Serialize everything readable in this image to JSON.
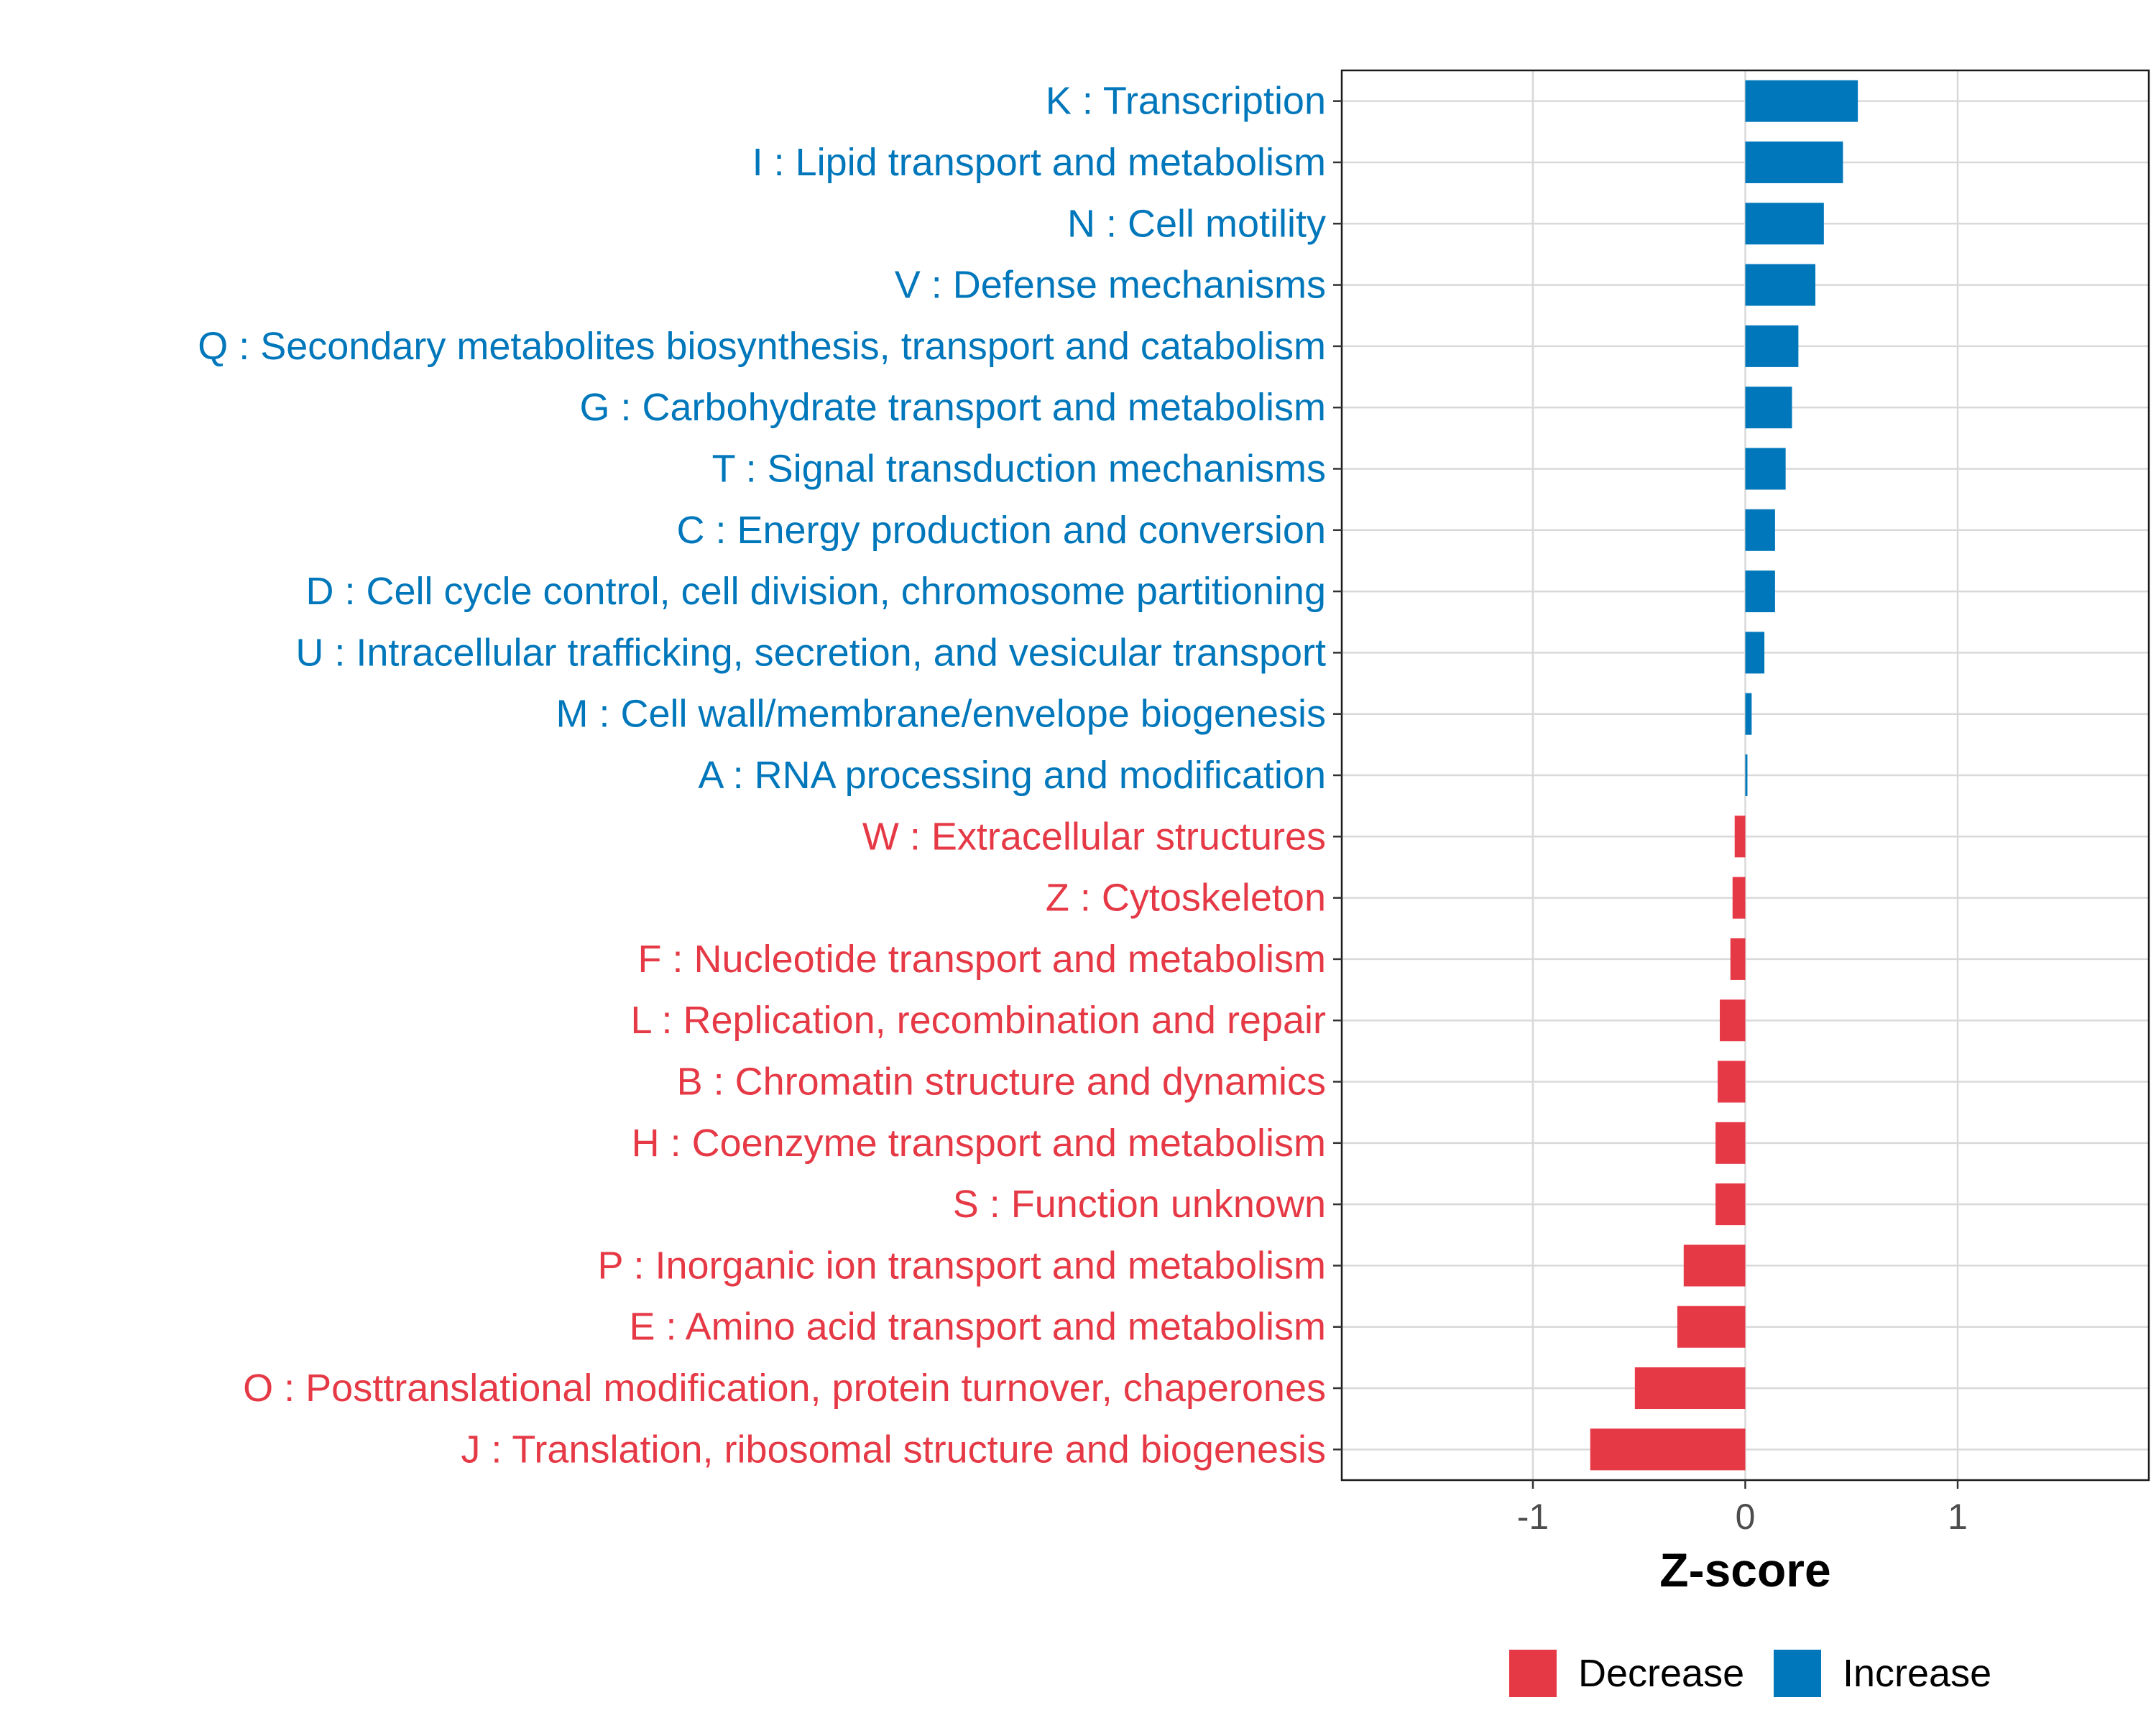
{
  "chart_data": {
    "type": "bar",
    "orientation": "horizontal",
    "title": "",
    "xlabel": "Z-score",
    "ylabel": "",
    "xlim": [
      -1.9,
      1.9
    ],
    "x_ticks": [
      -1,
      0,
      1
    ],
    "x_tick_labels": [
      "-1",
      "0",
      "1"
    ],
    "grid": true,
    "legend_position": "bottom",
    "legend": [
      {
        "name": "Decrease",
        "color": "#E63946"
      },
      {
        "name": "Increase",
        "color": "#0077BB"
      }
    ],
    "categories": [
      "K : Transcription",
      "I : Lipid transport and metabolism",
      "N : Cell motility",
      "V : Defense mechanisms",
      "Q : Secondary metabolites biosynthesis, transport and catabolism",
      "G : Carbohydrate transport and metabolism",
      "T : Signal transduction mechanisms",
      "C : Energy production and conversion",
      "D : Cell cycle control, cell division, chromosome partitioning",
      "U : Intracellular trafficking, secretion, and vesicular transport",
      "M : Cell wall/membrane/envelope biogenesis",
      "A : RNA processing and modification",
      "W : Extracellular structures",
      "Z : Cytoskeleton",
      "F : Nucleotide transport and metabolism",
      "L : Replication, recombination and repair",
      "B : Chromatin structure and dynamics",
      "H : Coenzyme transport and metabolism",
      "S : Function unknown",
      "P : Inorganic ion transport and metabolism",
      "E : Amino acid transport and metabolism",
      "O : Posttranslational modification, protein turnover, chaperones",
      "J : Translation, ribosomal structure and biogenesis"
    ],
    "values": [
      0.53,
      0.46,
      0.37,
      0.33,
      0.25,
      0.22,
      0.19,
      0.14,
      0.14,
      0.09,
      0.03,
      0.01,
      -0.05,
      -0.06,
      -0.07,
      -0.12,
      -0.13,
      -0.14,
      -0.14,
      -0.29,
      -0.32,
      -0.52,
      -0.73
    ],
    "groups": [
      "Increase",
      "Increase",
      "Increase",
      "Increase",
      "Increase",
      "Increase",
      "Increase",
      "Increase",
      "Increase",
      "Increase",
      "Increase",
      "Increase",
      "Decrease",
      "Decrease",
      "Decrease",
      "Decrease",
      "Decrease",
      "Decrease",
      "Decrease",
      "Decrease",
      "Decrease",
      "Decrease",
      "Decrease"
    ]
  }
}
